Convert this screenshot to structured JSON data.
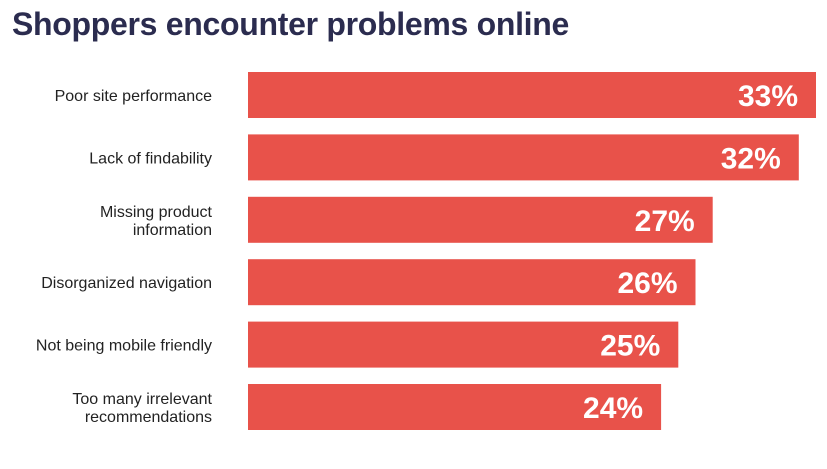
{
  "chart_data": {
    "type": "bar",
    "orientation": "horizontal",
    "title": "Shoppers encounter problems online",
    "categories": [
      [
        "Poor site performance"
      ],
      [
        "Lack of findability"
      ],
      [
        "Missing product",
        "information"
      ],
      [
        "Disorganized navigation"
      ],
      [
        "Not being mobile friendly"
      ],
      [
        "Too many irrelevant",
        "recommendations"
      ]
    ],
    "values": [
      33,
      32,
      27,
      26,
      25,
      24
    ],
    "value_labels": [
      "33%",
      "32%",
      "27%",
      "26%",
      "25%",
      "24%"
    ],
    "unit": "%",
    "xlim": [
      0,
      33
    ],
    "bar_color": "#e8524a",
    "grid": false,
    "legend": "none"
  }
}
